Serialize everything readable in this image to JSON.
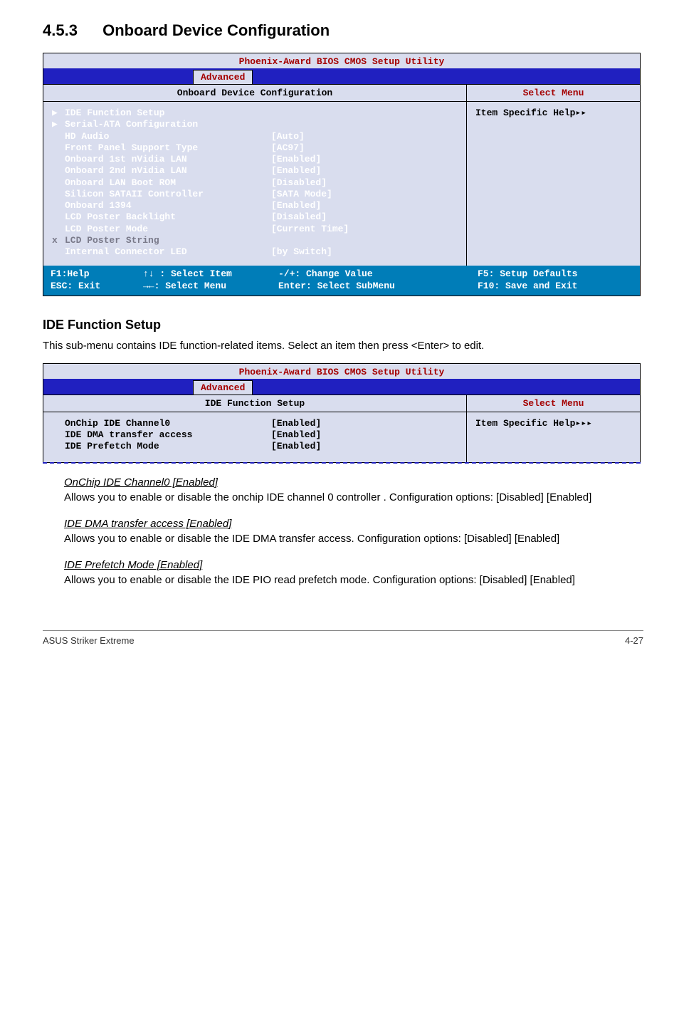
{
  "heading_number": "4.5.3",
  "heading_text": "Onboard Device Configuration",
  "bios": {
    "title": "Phoenix-Award BIOS CMOS Setup Utility",
    "tab": "Advanced",
    "subhead_left": "Onboard Device Configuration",
    "subhead_right": "Select Menu",
    "help_label": "Item Specific Help▸▸",
    "rows": [
      {
        "marker": "▶",
        "label": "IDE Function Setup",
        "value": "",
        "grey": false
      },
      {
        "marker": "▶",
        "label": "Serial-ATA Configuration",
        "value": "",
        "grey": false
      },
      {
        "marker": "",
        "label": "HD Audio",
        "value": "[Auto]",
        "grey": false
      },
      {
        "marker": "",
        "label": "Front Panel Support Type",
        "value": "[AC97]",
        "grey": false
      },
      {
        "marker": "",
        "label": "Onboard 1st nVidia LAN",
        "value": "[Enabled]",
        "grey": false
      },
      {
        "marker": "",
        "label": "Onboard 2nd nVidia LAN",
        "value": "[Enabled]",
        "grey": false
      },
      {
        "marker": "",
        "label": "Onboard LAN Boot ROM",
        "value": "[Disabled]",
        "grey": false
      },
      {
        "marker": "",
        "label": "Silicon SATAII Controller",
        "value": "[SATA Mode]",
        "grey": false
      },
      {
        "marker": "",
        "label": "Onboard 1394",
        "value": "[Enabled]",
        "grey": false
      },
      {
        "marker": "",
        "label": "LCD Poster Backlight",
        "value": "[Disabled]",
        "grey": false
      },
      {
        "marker": "",
        "label": "LCD Poster Mode",
        "value": "[Current Time]",
        "grey": false
      },
      {
        "marker": "x",
        "label": "LCD Poster String",
        "value": "",
        "grey": true
      },
      {
        "marker": "",
        "label": "Internal Connector LED",
        "value": "[by Switch]",
        "grey": false
      }
    ],
    "foot": {
      "c1a": "F1:Help",
      "c1b": "ESC: Exit",
      "c2a": "↑↓ : Select Item",
      "c2b": "→←: Select Menu",
      "c3a": "-/+: Change Value",
      "c3b": "Enter: Select SubMenu",
      "c4a": "F5: Setup Defaults",
      "c4b": "F10: Save and Exit"
    }
  },
  "sub_h3": "IDE Function Setup",
  "sub_p": "This sub-menu contains IDE function-related items. Select an item then press <Enter> to edit.",
  "bios2": {
    "title": "Phoenix-Award BIOS CMOS Setup Utility",
    "tab": "Advanced",
    "subhead_left": "IDE Function Setup",
    "subhead_right": "Select Menu",
    "help_label": "Item Specific Help▸▸▸",
    "rows": [
      {
        "label": "OnChip IDE Channel0",
        "value": "[Enabled]"
      },
      {
        "label": "IDE DMA transfer access",
        "value": "[Enabled]"
      },
      {
        "label": "IDE Prefetch Mode",
        "value": "[Enabled]"
      }
    ]
  },
  "items": [
    {
      "h": "OnChip IDE Channel0 [Enabled]",
      "b": "Allows you to enable or disable the onchip IDE channel 0 controller . Configuration options: [Disabled] [Enabled]"
    },
    {
      "h": "IDE DMA transfer access [Enabled]",
      "b": "Allows you to enable or disable the IDE DMA transfer access. Configuration options: [Disabled] [Enabled]"
    },
    {
      "h": "IDE Prefetch Mode [Enabled]",
      "b": "Allows you to enable or disable the IDE PIO read prefetch mode. Configuration options: [Disabled] [Enabled]"
    }
  ],
  "footer_left": "ASUS Striker Extreme",
  "footer_right": "4-27"
}
